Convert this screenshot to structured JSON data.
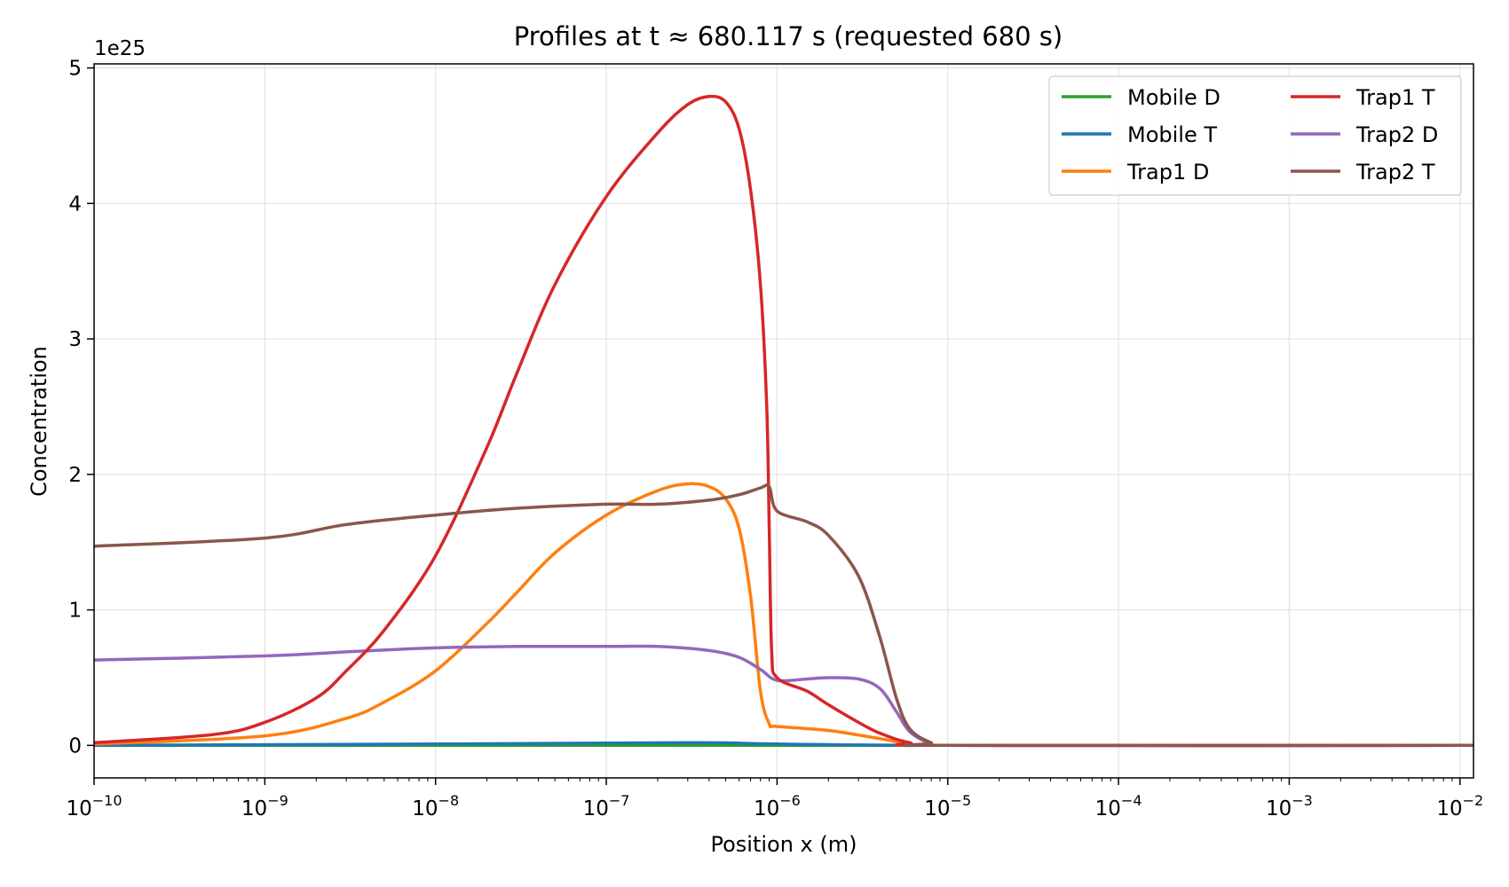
{
  "chart_data": {
    "type": "line",
    "title": "Profiles at t ≈ 680.117 s (requested 680 s)",
    "xlabel": "Position x (m)",
    "ylabel": "Concentration",
    "y_offset_label": "1e25",
    "x_scale": "log",
    "xlim": [
      1e-10,
      0.012
    ],
    "ylim": [
      -2.4e+24,
      5.03e+25
    ],
    "grid": true,
    "legend_position": "top-right",
    "x_ticks": [
      {
        "value": 1e-10,
        "base": "10",
        "exp": "−10"
      },
      {
        "value": 1e-09,
        "base": "10",
        "exp": "−9"
      },
      {
        "value": 1e-08,
        "base": "10",
        "exp": "−8"
      },
      {
        "value": 1e-07,
        "base": "10",
        "exp": "−7"
      },
      {
        "value": 1e-06,
        "base": "10",
        "exp": "−6"
      },
      {
        "value": 1e-05,
        "base": "10",
        "exp": "−5"
      },
      {
        "value": 0.0001,
        "base": "10",
        "exp": "−4"
      },
      {
        "value": 0.001,
        "base": "10",
        "exp": "−3"
      },
      {
        "value": 0.01,
        "base": "10",
        "exp": "−2"
      }
    ],
    "y_ticks": [
      {
        "value": 0,
        "label": "0"
      },
      {
        "value": 1e+25,
        "label": "1"
      },
      {
        "value": 2e+25,
        "label": "2"
      },
      {
        "value": 3e+25,
        "label": "3"
      },
      {
        "value": 4e+25,
        "label": "4"
      },
      {
        "value": 5e+25,
        "label": "5"
      }
    ],
    "series": [
      {
        "name": "Mobile D",
        "color": "#2ca02c",
        "points": [
          [
            1e-10,
            0
          ],
          [
            1e-07,
            0
          ],
          [
            1e-05,
            0
          ],
          [
            0.012,
            0
          ]
        ]
      },
      {
        "name": "Mobile T",
        "color": "#1f77b4",
        "points": [
          [
            1e-10,
            0
          ],
          [
            1e-08,
            1e+23
          ],
          [
            3e-07,
            2e+23
          ],
          [
            1e-06,
            1e+23
          ],
          [
            1e-05,
            0
          ],
          [
            0.012,
            0
          ]
        ]
      },
      {
        "name": "Trap1 D",
        "color": "#ff7f0e",
        "points": [
          [
            1e-10,
            1e+23
          ],
          [
            1e-09,
            7e+23
          ],
          [
            3e-09,
            2e+24
          ],
          [
            5e-09,
            3.2e+24
          ],
          [
            1e-08,
            5.5e+24
          ],
          [
            2e-08,
            9e+24
          ],
          [
            3e-08,
            1.13e+25
          ],
          [
            5e-08,
            1.42e+25
          ],
          [
            1e-07,
            1.7e+25
          ],
          [
            2e-07,
            1.88e+25
          ],
          [
            3e-07,
            1.93e+25
          ],
          [
            4e-07,
            1.91e+25
          ],
          [
            5e-07,
            1.82e+25
          ],
          [
            6e-07,
            1.6e+25
          ],
          [
            7e-07,
            1.1e+25
          ],
          [
            8e-07,
            4e+24
          ],
          [
            9e-07,
            1.6e+24
          ],
          [
            1e-06,
            1.4e+24
          ],
          [
            2e-06,
            1.1e+24
          ],
          [
            4e-06,
            5e+23
          ],
          [
            6e-06,
            1e+23
          ],
          [
            1e-05,
            0
          ],
          [
            0.012,
            0
          ]
        ]
      },
      {
        "name": "Trap1 T",
        "color": "#d62728",
        "points": [
          [
            1e-10,
            2e+23
          ],
          [
            5e-10,
            8e+23
          ],
          [
            1e-09,
            1.7e+24
          ],
          [
            2e-09,
            3.5e+24
          ],
          [
            3e-09,
            5.5e+24
          ],
          [
            5e-09,
            8.5e+24
          ],
          [
            1e-08,
            1.4e+25
          ],
          [
            2e-08,
            2.2e+25
          ],
          [
            3e-08,
            2.75e+25
          ],
          [
            5e-08,
            3.4e+25
          ],
          [
            1e-07,
            4.05e+25
          ],
          [
            2e-07,
            4.52e+25
          ],
          [
            3e-07,
            4.73e+25
          ],
          [
            4e-07,
            4.79e+25
          ],
          [
            5e-07,
            4.75e+25
          ],
          [
            6e-07,
            4.55e+25
          ],
          [
            7e-07,
            4.1e+25
          ],
          [
            8e-07,
            3.4e+25
          ],
          [
            8.7e-07,
            2.5e+25
          ],
          [
            9e-07,
            1.6e+25
          ],
          [
            9.3e-07,
            7e+24
          ],
          [
            1e-06,
            5e+24
          ],
          [
            1.5e-06,
            4e+24
          ],
          [
            2e-06,
            3e+24
          ],
          [
            3e-06,
            1.7e+24
          ],
          [
            4e-06,
            9e+23
          ],
          [
            6e-06,
            2e+23
          ],
          [
            1e-05,
            0
          ],
          [
            0.012,
            0
          ]
        ]
      },
      {
        "name": "Trap2 D",
        "color": "#9467bd",
        "points": [
          [
            1e-10,
            6.3e+24
          ],
          [
            1e-09,
            6.6e+24
          ],
          [
            3e-09,
            6.9e+24
          ],
          [
            1e-08,
            7.2e+24
          ],
          [
            3e-08,
            7.3e+24
          ],
          [
            1e-07,
            7.3e+24
          ],
          [
            2e-07,
            7.3e+24
          ],
          [
            4e-07,
            7e+24
          ],
          [
            6e-07,
            6.5e+24
          ],
          [
            8e-07,
            5.6e+24
          ],
          [
            1e-06,
            4.8e+24
          ],
          [
            1.5e-06,
            4.9e+24
          ],
          [
            2e-06,
            5e+24
          ],
          [
            3e-06,
            4.9e+24
          ],
          [
            4e-06,
            4.2e+24
          ],
          [
            5e-06,
            2.5e+24
          ],
          [
            6e-06,
            1e+24
          ],
          [
            8e-06,
            1e+23
          ],
          [
            1e-05,
            0
          ],
          [
            0.012,
            0
          ]
        ]
      },
      {
        "name": "Trap2 T",
        "color": "#8c564b",
        "points": [
          [
            1e-10,
            1.47e+25
          ],
          [
            1e-09,
            1.53e+25
          ],
          [
            3e-09,
            1.63e+25
          ],
          [
            1e-08,
            1.7e+25
          ],
          [
            3e-08,
            1.75e+25
          ],
          [
            1e-07,
            1.78e+25
          ],
          [
            2e-07,
            1.78e+25
          ],
          [
            4e-07,
            1.81e+25
          ],
          [
            6e-07,
            1.85e+25
          ],
          [
            8e-07,
            1.9e+25
          ],
          [
            9e-07,
            1.91e+25
          ],
          [
            1e-06,
            1.73e+25
          ],
          [
            1.5e-06,
            1.65e+25
          ],
          [
            2e-06,
            1.55e+25
          ],
          [
            3e-06,
            1.25e+25
          ],
          [
            4e-06,
            8e+24
          ],
          [
            5e-06,
            3.5e+24
          ],
          [
            6e-06,
            1.2e+24
          ],
          [
            8e-06,
            2e+23
          ],
          [
            1e-05,
            0
          ],
          [
            0.012,
            0
          ]
        ]
      }
    ],
    "legend_order": [
      "Mobile D",
      "Mobile T",
      "Trap1 D",
      "Trap1 T",
      "Trap2 D",
      "Trap2 T"
    ]
  }
}
